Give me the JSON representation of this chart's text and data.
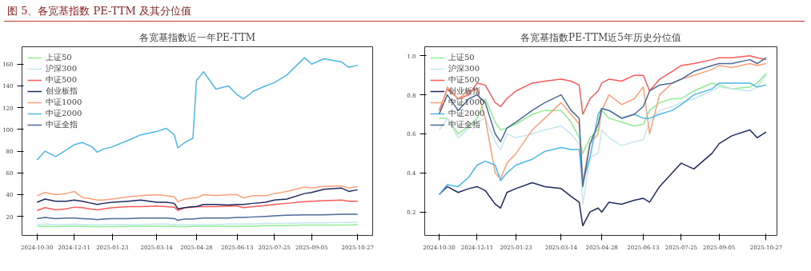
{
  "chart_data": [
    {
      "type": "line",
      "title": "各宽基指数近一年PE-TTM",
      "annotations": [
        "图 5、各宽基指数 PE-TTM 及其分位值"
      ],
      "x": [
        "2024-10-30",
        "2024-11-08",
        "2024-11-20",
        "2024-12-02",
        "2024-12-11",
        "2024-12-20",
        "2024-12-31",
        "2025-01-06",
        "2025-01-13",
        "2025-01-23",
        "2025-02-10",
        "2025-02-24",
        "2025-03-14",
        "2025-03-25",
        "2025-04-03",
        "2025-04-07",
        "2025-04-15",
        "2025-04-24",
        "2025-04-28",
        "2025-05-06",
        "2025-05-20",
        "2025-06-03",
        "2025-06-13",
        "2025-06-20",
        "2025-07-01",
        "2025-07-15",
        "2025-07-25",
        "2025-08-08",
        "2025-08-28",
        "2025-09-05",
        "2025-09-19",
        "2025-10-09",
        "2025-10-17",
        "2025-10-27"
      ],
      "xlim": [
        "2024-10-13",
        "2025-11-13"
      ],
      "xticks": [
        "2024-10-30",
        "2024-12-11",
        "2025-01-23",
        "2025-03-14",
        "2025-04-28",
        "2025-06-13",
        "2025-07-25",
        "2025-09-05",
        "2025-10-27"
      ],
      "ylim": [
        2.5,
        176
      ],
      "yticks": [
        20,
        40,
        60,
        80,
        100,
        120,
        140,
        160
      ],
      "grid": false,
      "legend": "top left",
      "series": [
        {
          "name": "上证50",
          "color": "#90ee90",
          "values": [
            11,
            11,
            10.5,
            11,
            11,
            11,
            10.5,
            10.5,
            10.5,
            10.5,
            11,
            11,
            11,
            11,
            11,
            10.5,
            10.5,
            11,
            11,
            11,
            11,
            11,
            11,
            11,
            11,
            11.5,
            11.5,
            11.5,
            12,
            12,
            12,
            12,
            12,
            12.5
          ]
        },
        {
          "name": "沪深300",
          "color": "#c6e6f0",
          "values": [
            12.5,
            13,
            12.5,
            12.5,
            13,
            12.5,
            12.5,
            12,
            12.5,
            12.5,
            12.5,
            12.5,
            13,
            13,
            12.5,
            12,
            12.5,
            12.5,
            12.5,
            12.5,
            12.5,
            13,
            13,
            13,
            13,
            13.5,
            13.5,
            13.5,
            14,
            14,
            14,
            14.5,
            14.5,
            14.5
          ]
        },
        {
          "name": "中证500",
          "color": "#ff5a5a",
          "values": [
            25.5,
            28,
            26,
            27,
            28.5,
            28,
            26.5,
            26,
            27,
            28,
            29,
            29,
            29.5,
            29,
            28.5,
            25.5,
            28,
            28.5,
            29,
            29,
            29,
            29.5,
            29.5,
            28,
            29,
            30,
            31,
            32,
            33.5,
            34,
            34.5,
            35,
            34,
            34
          ]
        },
        {
          "name": "创业板指",
          "color": "#1f2a5c",
          "values": [
            33,
            36,
            34,
            34,
            35,
            34,
            32,
            31,
            32,
            33,
            34,
            35,
            33,
            33,
            32,
            27,
            28,
            29,
            29,
            31,
            31,
            30.5,
            31,
            31,
            32,
            33,
            35,
            36,
            41,
            42,
            45,
            46,
            43,
            44.5
          ]
        },
        {
          "name": "中证1000",
          "color": "#ffa07a",
          "values": [
            39,
            42,
            40,
            41,
            43,
            37.5,
            36,
            35,
            35,
            36,
            38,
            39,
            40,
            39,
            38,
            33.5,
            36,
            37,
            37,
            40,
            39,
            40,
            40,
            37,
            39,
            39,
            41,
            43,
            47,
            46,
            47.5,
            48,
            46,
            47.5
          ]
        },
        {
          "name": "中证2000",
          "color": "#4db8e8",
          "values": [
            72,
            80,
            75,
            81,
            86,
            88,
            84,
            79,
            82,
            84,
            90,
            95,
            98,
            101,
            95,
            83,
            88,
            92,
            145,
            153,
            137,
            140,
            132,
            128,
            135,
            140,
            143,
            150,
            166,
            160,
            165,
            162,
            157,
            159
          ]
        },
        {
          "name": "中证全指",
          "color": "#4a6a9a",
          "values": [
            18,
            19,
            18,
            18.5,
            18.5,
            18,
            17.5,
            17,
            17.5,
            18,
            18,
            18.5,
            18.5,
            18.5,
            18,
            16.5,
            17.5,
            17.5,
            18,
            18.5,
            18.5,
            18.5,
            19,
            19,
            19.5,
            20,
            20.5,
            21,
            21.5,
            21.5,
            21.5,
            22,
            22,
            22
          ]
        }
      ]
    },
    {
      "type": "line",
      "title": "各宽基指数PE-TTM近5年历史分位值",
      "x": [
        "2024-10-30",
        "2024-11-08",
        "2024-11-20",
        "2024-12-02",
        "2024-12-11",
        "2024-12-20",
        "2024-12-31",
        "2025-01-06",
        "2025-01-13",
        "2025-01-23",
        "2025-02-10",
        "2025-02-24",
        "2025-03-14",
        "2025-03-25",
        "2025-04-03",
        "2025-04-07",
        "2025-04-15",
        "2025-04-24",
        "2025-04-28",
        "2025-05-06",
        "2025-05-20",
        "2025-06-03",
        "2025-06-13",
        "2025-06-20",
        "2025-07-01",
        "2025-07-15",
        "2025-07-25",
        "2025-08-08",
        "2025-08-28",
        "2025-09-05",
        "2025-09-19",
        "2025-10-09",
        "2025-10-17",
        "2025-10-27"
      ],
      "xlim": [
        "2024-10-14",
        "2025-11-08"
      ],
      "xticks": [
        "2024-10-30",
        "2024-12-11",
        "2025-01-23",
        "2025-03-14",
        "2025-04-28",
        "2025-06-13",
        "2025-07-25",
        "2025-09-05",
        "2025-10-27"
      ],
      "ylim": [
        0.08,
        1.046
      ],
      "yticks": [
        {
          "value": 0.2,
          "label": "0.2"
        },
        {
          "value": 0.4,
          "label": "0.4"
        },
        {
          "value": 0.6,
          "label": "0.6"
        },
        {
          "value": 0.8,
          "label": "0.8"
        },
        {
          "value": 1.0,
          "label": "1.0"
        }
      ],
      "grid": false,
      "legend": "top left",
      "series": [
        {
          "name": "上证50",
          "color": "#90ee90",
          "values": [
            0.68,
            0.68,
            0.6,
            0.64,
            0.68,
            0.78,
            0.66,
            0.62,
            0.63,
            0.65,
            0.7,
            0.72,
            0.72,
            0.66,
            0.58,
            0.5,
            0.58,
            0.62,
            0.72,
            0.68,
            0.66,
            0.64,
            0.65,
            0.72,
            0.76,
            0.78,
            0.78,
            0.82,
            0.86,
            0.85,
            0.83,
            0.84,
            0.86,
            0.91
          ]
        },
        {
          "name": "沪深300",
          "color": "#c6e6f0",
          "values": [
            0.62,
            0.68,
            0.58,
            0.63,
            0.66,
            0.68,
            0.56,
            0.52,
            0.6,
            0.58,
            0.6,
            0.62,
            0.64,
            0.6,
            0.55,
            0.24,
            0.48,
            0.5,
            0.62,
            0.58,
            0.54,
            0.56,
            0.57,
            0.66,
            0.72,
            0.74,
            0.76,
            0.78,
            0.82,
            0.84,
            0.83,
            0.82,
            0.84,
            0.9
          ]
        },
        {
          "name": "中证500",
          "color": "#ff5a5a",
          "values": [
            0.72,
            0.83,
            0.78,
            0.8,
            0.86,
            0.85,
            0.76,
            0.74,
            0.78,
            0.82,
            0.86,
            0.87,
            0.88,
            0.87,
            0.85,
            0.7,
            0.78,
            0.82,
            0.86,
            0.88,
            0.87,
            0.9,
            0.9,
            0.82,
            0.88,
            0.92,
            0.95,
            0.96,
            0.98,
            0.99,
            0.99,
            1.0,
            0.99,
            0.98
          ]
        },
        {
          "name": "创业板指",
          "color": "#1f2a5c",
          "values": [
            0.29,
            0.33,
            0.3,
            0.32,
            0.33,
            0.31,
            0.24,
            0.22,
            0.3,
            0.32,
            0.35,
            0.33,
            0.32,
            0.28,
            0.25,
            0.13,
            0.2,
            0.22,
            0.2,
            0.25,
            0.24,
            0.26,
            0.27,
            0.25,
            0.33,
            0.4,
            0.45,
            0.42,
            0.5,
            0.55,
            0.59,
            0.62,
            0.58,
            0.61
          ]
        },
        {
          "name": "中证1000",
          "color": "#ffa07a",
          "values": [
            0.7,
            0.84,
            0.78,
            0.82,
            0.83,
            0.68,
            0.4,
            0.37,
            0.45,
            0.5,
            0.62,
            0.68,
            0.76,
            0.7,
            0.65,
            0.36,
            0.55,
            0.6,
            0.72,
            0.8,
            0.75,
            0.78,
            0.84,
            0.6,
            0.8,
            0.86,
            0.88,
            0.9,
            0.93,
            0.95,
            0.94,
            0.96,
            0.95,
            0.96
          ]
        },
        {
          "name": "中证2000",
          "color": "#4db8e8",
          "values": [
            0.29,
            0.34,
            0.33,
            0.38,
            0.44,
            0.46,
            0.44,
            0.36,
            0.4,
            0.44,
            0.47,
            0.51,
            0.53,
            0.52,
            0.52,
            0.35,
            0.48,
            0.7,
            0.73,
            0.72,
            0.68,
            0.7,
            0.68,
            0.68,
            0.7,
            0.72,
            0.75,
            0.8,
            0.83,
            0.86,
            0.86,
            0.86,
            0.84,
            0.85
          ]
        },
        {
          "name": "中证全指",
          "color": "#4a6a9a",
          "values": [
            0.7,
            0.8,
            0.72,
            0.78,
            0.8,
            0.76,
            0.6,
            0.56,
            0.63,
            0.66,
            0.72,
            0.76,
            0.8,
            0.72,
            0.68,
            0.33,
            0.55,
            0.65,
            0.73,
            0.72,
            0.68,
            0.7,
            0.74,
            0.82,
            0.85,
            0.86,
            0.88,
            0.92,
            0.95,
            0.96,
            0.96,
            0.98,
            0.96,
            0.99
          ]
        }
      ]
    }
  ]
}
